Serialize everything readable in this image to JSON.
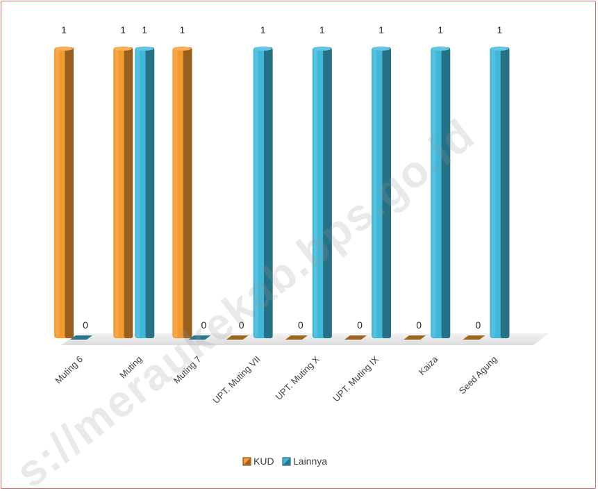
{
  "chart_data": {
    "type": "bar",
    "categories": [
      "Muting 6",
      "Muting",
      "Muting 7",
      "UPT. Muting VII",
      "UPT. Muting X",
      "UPT. Muting IX",
      "Kaiza",
      "Seed Agung"
    ],
    "series": [
      {
        "name": "KUD",
        "values": [
          1,
          1,
          1,
          0,
          0,
          0,
          0,
          0
        ],
        "color": "#f59a2e"
      },
      {
        "name": "Lainnya",
        "values": [
          0,
          1,
          0,
          1,
          1,
          1,
          1,
          1
        ],
        "color": "#3fb7d8"
      }
    ],
    "ylim": [
      0,
      1
    ],
    "grid": false,
    "legend_position": "bottom",
    "bar_style": "3d-cylinder"
  },
  "watermark": {
    "text": "s://meraukekab.bps.go.id"
  }
}
